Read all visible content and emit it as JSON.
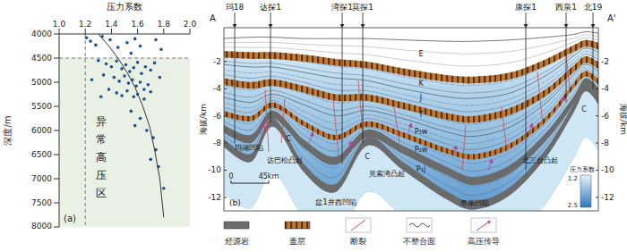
{
  "chart_data": {
    "type": "scatter",
    "panel": "(a)",
    "x_label": "压力系数",
    "y_label": "深度/m",
    "annotation": "异常高压区",
    "color": "#1f4e96",
    "marker": "circle",
    "xlim": [
      1,
      2
    ],
    "xticks": [
      {
        "value": 1,
        "label": "1.0"
      },
      1.2,
      1.4,
      1.6,
      1.8,
      {
        "value": 2,
        "label": "2.0"
      }
    ],
    "ylim": [
      4000,
      8000
    ],
    "yticks": [
      4000,
      4500,
      5000,
      5500,
      6000,
      6500,
      7000,
      7500,
      8000
    ],
    "reference_lines": {
      "x": 1.2,
      "y": 4500
    },
    "x": [
      1.21,
      1.24,
      1.28,
      1.33,
      1.39,
      1.45,
      1.52,
      1.58,
      1.62,
      1.74,
      1.78,
      1.55,
      1.3,
      1.36,
      1.4,
      1.44,
      1.48,
      1.51,
      1.54,
      1.57,
      1.6,
      1.63,
      1.66,
      1.7,
      1.73,
      1.77,
      1.34,
      1.42,
      1.46,
      1.5,
      1.53,
      1.56,
      1.59,
      1.62,
      1.65,
      1.68,
      1.38,
      1.44,
      1.48,
      1.52,
      1.57,
      1.6,
      1.65,
      1.7,
      1.55,
      1.62,
      1.58,
      1.67,
      1.72,
      1.74,
      1.7,
      1.76,
      1.8,
      1.32,
      1.25
    ],
    "values": [
      4080,
      4150,
      4230,
      4050,
      4120,
      4280,
      4180,
      4100,
      4250,
      4120,
      4320,
      4400,
      4550,
      4620,
      4680,
      4560,
      4720,
      4640,
      4780,
      4700,
      4590,
      4820,
      4680,
      4750,
      4600,
      4900,
      4850,
      4900,
      4980,
      4870,
      5020,
      4950,
      5080,
      5000,
      5150,
      5050,
      5150,
      5220,
      5280,
      5180,
      5300,
      5250,
      5350,
      5200,
      5600,
      5750,
      5900,
      6000,
      6150,
      6400,
      6600,
      6750,
      7200,
      5300,
      4950
    ],
    "trend": {
      "x": [
        1.3,
        1.38,
        1.45,
        1.52,
        1.58,
        1.64,
        1.69,
        1.73,
        1.77,
        1.8
      ],
      "values": [
        4000,
        4250,
        4500,
        4800,
        5100,
        5500,
        5900,
        6400,
        7000,
        7800
      ]
    }
  },
  "section": {
    "panel": "(b)",
    "start": "A",
    "end": "A'",
    "y_label": "海拔/km",
    "ylim": [
      -13,
      0.5
    ],
    "yticks": [
      -2,
      -4,
      -6,
      -8,
      -10,
      -12
    ],
    "wells": [
      "玛18",
      "达探1",
      "湾探1",
      "莫探1",
      "康探1",
      "西泉1",
      "北19"
    ],
    "formations": [
      "E",
      "K",
      "J",
      "T",
      "P₃w",
      "P₂w",
      "P₁j",
      "C",
      "C",
      "C"
    ],
    "units": [
      "玛湖凹陷",
      "达巴松凸起",
      "盆1井西凹陷",
      "莫索湾凸起",
      "阜康凹陷",
      "北三台凸起"
    ],
    "scale_bar": [
      "0",
      "45km"
    ],
    "color_bar": {
      "title": "压力系数",
      "range": [
        1.2,
        2.5
      ]
    },
    "legend_items": [
      "烃源岩",
      "盖层",
      "断裂",
      "不整合面",
      "高压传导"
    ]
  }
}
